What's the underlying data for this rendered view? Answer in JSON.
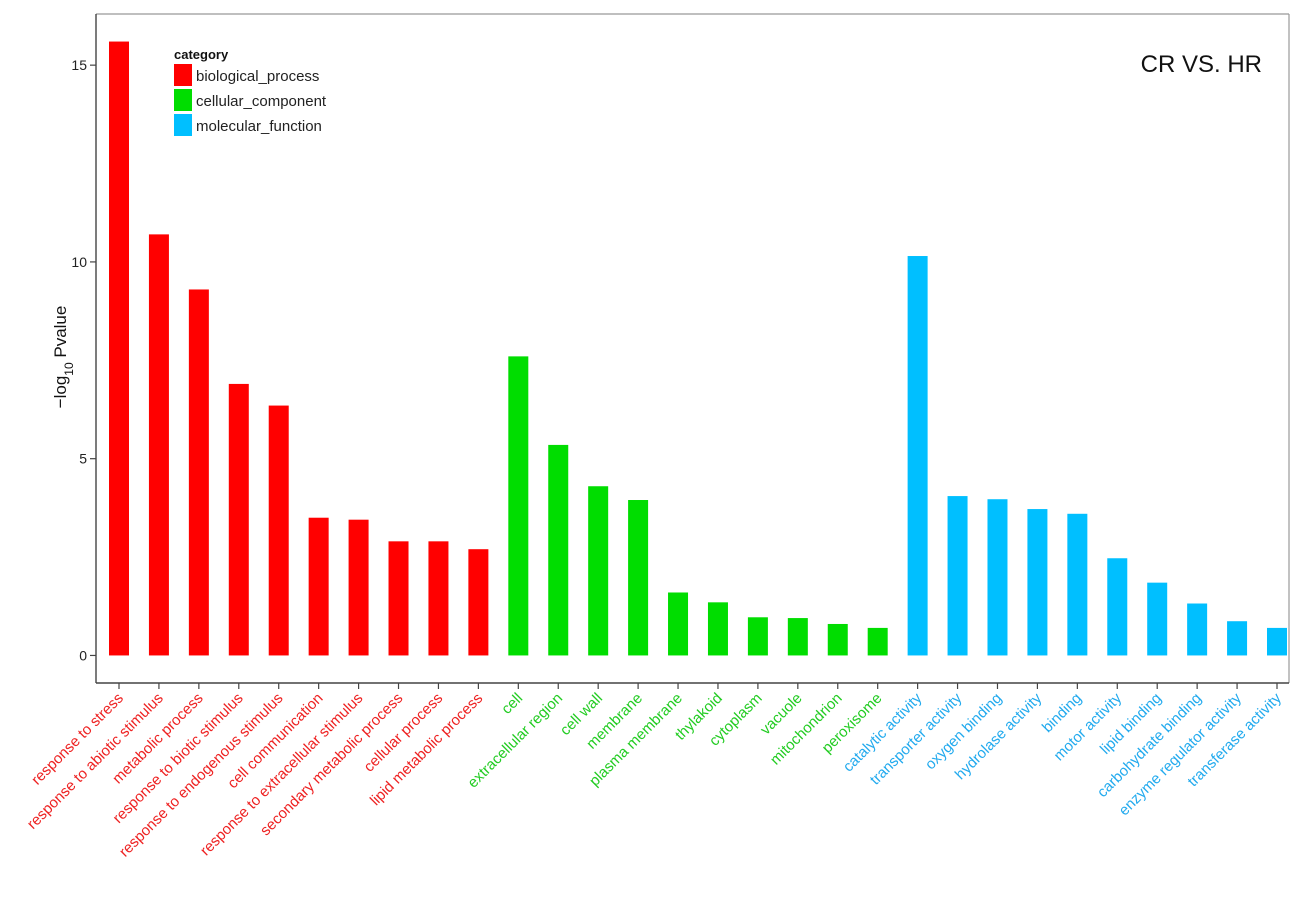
{
  "chart_data": {
    "type": "bar",
    "title": "",
    "annotation": "CR VS. HR",
    "xlabel": "",
    "ylabel": "-log10 Pvalue",
    "ylabel_parts": {
      "prefix": "−log",
      "subscript": "10",
      "suffix": " Pvalue"
    },
    "ylim": [
      -0.7,
      16.3
    ],
    "yticks": [
      0,
      5,
      10,
      15
    ],
    "grid": false,
    "legend": {
      "title": "category",
      "placement": "top-left",
      "entries": [
        {
          "name": "biological_process",
          "color": "#ff0000"
        },
        {
          "name": "cellular_component",
          "color": "#00dd00"
        },
        {
          "name": "molecular_function",
          "color": "#00bfff"
        }
      ]
    },
    "series": [
      {
        "name": "biological_process",
        "color": "#ff0000",
        "label_color": "#ee2222",
        "categories": [
          "response to stress",
          "response to abiotic stimulus",
          "metabolic process",
          "response to biotic stimulus",
          "response to endogenous stimulus",
          "cell communication",
          "response to extracellular stimulus",
          "secondary metabolic process",
          "cellular process",
          "lipid metabolic process"
        ],
        "values": [
          15.6,
          10.7,
          9.3,
          6.9,
          6.35,
          3.5,
          3.45,
          2.9,
          2.9,
          2.7
        ]
      },
      {
        "name": "cellular_component",
        "color": "#00dd00",
        "label_color": "#22cc22",
        "categories": [
          "cell",
          "extracellular region",
          "cell wall",
          "membrane",
          "plasma membrane",
          "thylakoid",
          "cytoplasm",
          "vacuole",
          "mitochondrion",
          "peroxisome"
        ],
        "values": [
          7.6,
          5.35,
          4.3,
          3.95,
          1.6,
          1.35,
          0.97,
          0.95,
          0.8,
          0.7
        ]
      },
      {
        "name": "molecular_function",
        "color": "#00bfff",
        "label_color": "#22aaee",
        "categories": [
          "catalytic activity",
          "transporter activity",
          "oxygen binding",
          "hydrolase activity",
          "binding",
          "motor activity",
          "lipid binding",
          "carbohydrate binding",
          "enzyme regulator activity",
          "transferase activity"
        ],
        "values": [
          10.15,
          4.05,
          3.97,
          3.72,
          3.6,
          2.47,
          1.85,
          1.32,
          0.87,
          0.7
        ]
      }
    ]
  }
}
